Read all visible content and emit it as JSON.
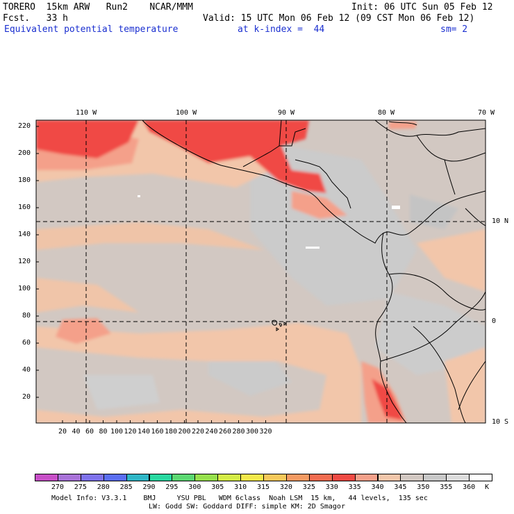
{
  "header": {
    "model": "TORERO  15km ARW   Run2    NCAR/MMM",
    "init": "Init: 06 UTC Sun 05 Feb 12",
    "fcst": "Fcst.   33 h",
    "valid": "Valid: 15 UTC Mon 06 Feb 12 (09 CST Mon 06 Feb 12)",
    "field": "Equivalent potential temperature",
    "level": "at k-index =  44",
    "smooth": "sm= 2"
  },
  "axes": {
    "lon_labels": [
      "110 W",
      "100 W",
      "90 W",
      "80 W",
      "70 W"
    ],
    "lat_labels": [
      "10 N",
      "0",
      "10 S"
    ],
    "x_ticks": [
      "20",
      "40",
      "60",
      "80",
      "100",
      "120",
      "140",
      "160",
      "180",
      "200",
      "220",
      "240",
      "260",
      "280",
      "300",
      "320"
    ],
    "y_ticks": [
      "220",
      "200",
      "180",
      "160",
      "140",
      "120",
      "100",
      "80",
      "60",
      "40",
      "20"
    ]
  },
  "colorbar": {
    "unit": "K",
    "labels": [
      "270",
      "275",
      "280",
      "285",
      "290",
      "295",
      "300",
      "305",
      "310",
      "315",
      "320",
      "325",
      "330",
      "335",
      "340",
      "345",
      "350",
      "355",
      "360"
    ],
    "colors": [
      "#c74fc7",
      "#a872d8",
      "#7e72ec",
      "#5a6ef2",
      "#2fb6c6",
      "#28d8a0",
      "#5cd872",
      "#96e04c",
      "#d4ec46",
      "#f4e84a",
      "#f6c85a",
      "#f49a62",
      "#f26c50",
      "#f04a44",
      "#f4a08a",
      "#f2c6aa",
      "#d2c8c2",
      "#c8c8c8",
      "#dcdcdc",
      "#ffffff"
    ]
  },
  "footer": {
    "line1": "Model Info: V3.3.1    BMJ     YSU PBL   WDM 6class  Noah LSM  15 km,   44 levels,  135 sec",
    "line2": "LW: Godd SW: Goddard DIFF: simple KM: 2D Smagor"
  }
}
